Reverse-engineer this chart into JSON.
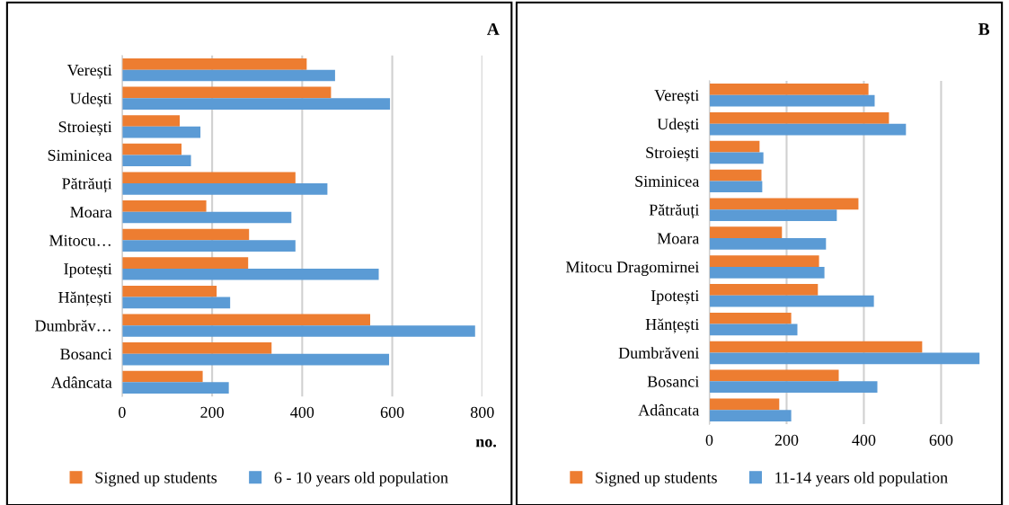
{
  "chart_data": [
    {
      "type": "bar",
      "orientation": "horizontal",
      "title": "A",
      "xlabel": "no.",
      "categories": [
        "Verești",
        "Udești",
        "Stroiești",
        "Siminicea",
        "Pătrăuți",
        "Moara",
        "Mitocu…",
        "Ipotești",
        "Hănțești",
        "Dumbrăv…",
        "Bosanci",
        "Adâncata"
      ],
      "series": [
        {
          "name": "Signed up students",
          "color": "#ed7d31",
          "values": [
            410,
            464,
            128,
            132,
            385,
            187,
            282,
            280,
            210,
            551,
            332,
            179
          ]
        },
        {
          "name": "6 - 10 years old population",
          "color": "#5b9bd5",
          "values": [
            473,
            595,
            174,
            153,
            456,
            376,
            385,
            570,
            240,
            784,
            593,
            237
          ]
        }
      ],
      "xlim": [
        0,
        800
      ],
      "xticks": [
        0,
        200,
        400,
        600,
        800
      ],
      "grid": "x",
      "legend": "bottom"
    },
    {
      "type": "bar",
      "orientation": "horizontal",
      "title": "B",
      "categories": [
        "Verești",
        "Udești",
        "Stroiești",
        "Siminicea",
        "Pătrăuți",
        "Moara",
        "Mitocu Dragomirnei",
        "Ipotești",
        "Hănțești",
        "Dumbrăveni",
        "Bosanci",
        "Adâncata"
      ],
      "series": [
        {
          "name": "Signed up students",
          "color": "#ed7d31",
          "values": [
            412,
            465,
            130,
            135,
            386,
            188,
            284,
            281,
            212,
            551,
            335,
            181
          ]
        },
        {
          "name": "11-14 years old population",
          "color": "#5b9bd5",
          "values": [
            428,
            509,
            140,
            137,
            330,
            302,
            298,
            426,
            228,
            700,
            435,
            212
          ]
        }
      ],
      "xlim": [
        0,
        700
      ],
      "xticks": [
        0,
        200,
        400,
        600
      ],
      "grid": "x",
      "legend": "bottom"
    }
  ]
}
